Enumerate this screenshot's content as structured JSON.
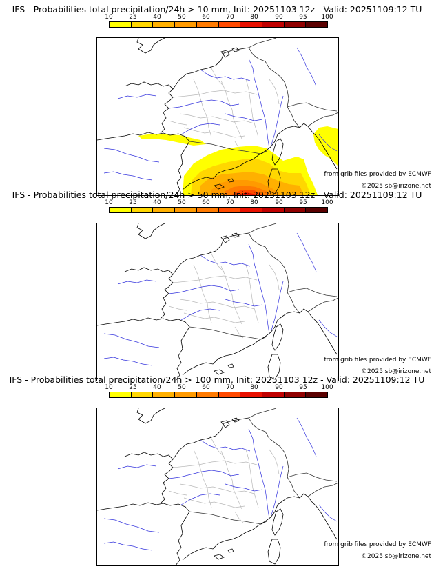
{
  "colors": [
    "#ffff00",
    "#ffd700",
    "#ffb000",
    "#ff9a00",
    "#ff7a00",
    "#ff4a00",
    "#e81000",
    "#c00000",
    "#900000",
    "#5a0000"
  ],
  "scale_labels": [
    "10",
    "25",
    "40",
    "50",
    "60",
    "70",
    "80",
    "90",
    "95",
    "100"
  ],
  "panels": [
    {
      "title": "IFS - Probabilities total precipitation/24h > 10 mm, Init: 20251103 12z - Valid: 20251109:12 TU",
      "source": "from grib files provided by ECMWF",
      "copyright": "©2025 sb@irizone.net",
      "has_field": true
    },
    {
      "title": "IFS - Probabilities total precipitation/24h > 50 mm, Init: 20251103 12z - Valid: 20251109:12 TU",
      "source": "from grib files provided by ECMWF",
      "copyright": "©2025 sb@irizone.net",
      "has_field": false
    },
    {
      "title": "IFS - Probabilities total precipitation/24h > 100 mm, Init: 20251103 12z - Valid: 20251109:12 TU",
      "source": "from grib files provided by ECMWF",
      "copyright": "©2025 sb@irizone.net",
      "has_field": false
    }
  ]
}
